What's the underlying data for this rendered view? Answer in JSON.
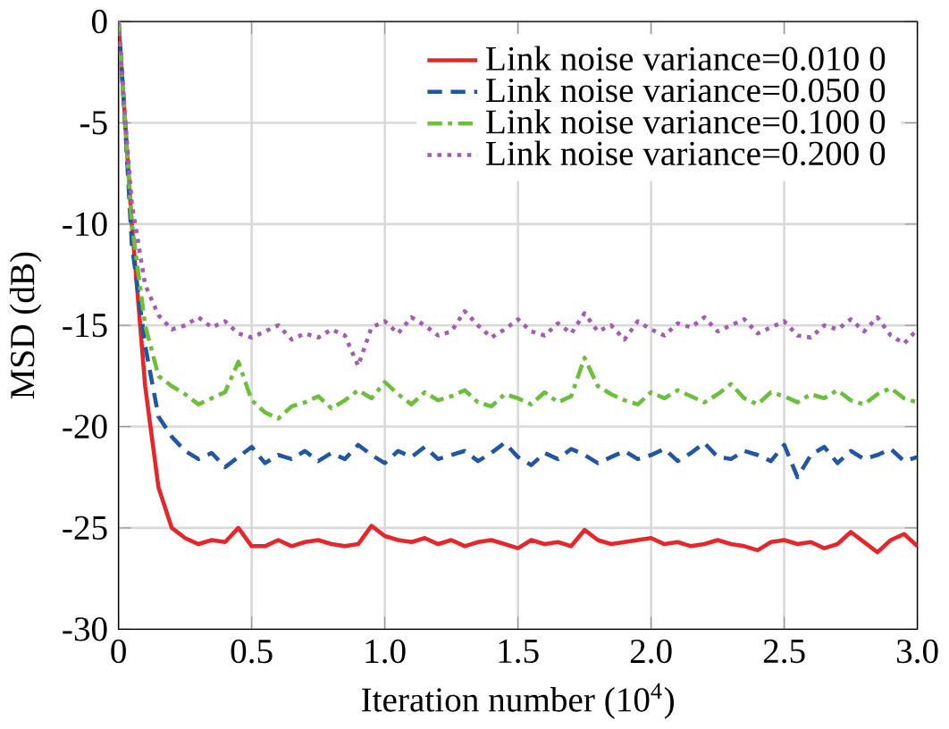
{
  "chart_data": {
    "type": "line",
    "xlabel": "Iteration number (10$^{4}$)",
    "ylabel": "MSD (dB)",
    "xlim": [
      0,
      3
    ],
    "ylim": [
      -30,
      0
    ],
    "xticks": [
      0,
      0.5,
      {
        "value": 1,
        "label": "1.0"
      },
      1.5,
      {
        "value": 2,
        "label": "2.0"
      },
      2.5,
      {
        "value": 3,
        "label": "3.0"
      }
    ],
    "yticks": [
      -30,
      -25,
      -20,
      -15,
      -10,
      -5,
      0
    ],
    "grid": true,
    "legend": "top right",
    "marker": "none",
    "x": [
      0,
      0.02,
      0.05,
      0.1,
      0.15,
      0.2,
      0.25,
      0.3,
      0.35,
      0.4,
      0.45,
      0.5,
      0.55,
      0.6,
      0.65,
      0.7,
      0.75,
      0.8,
      0.85,
      0.9,
      0.95,
      1.0,
      1.05,
      1.1,
      1.15,
      1.2,
      1.25,
      1.3,
      1.35,
      1.4,
      1.45,
      1.5,
      1.55,
      1.6,
      1.65,
      1.7,
      1.75,
      1.8,
      1.85,
      1.9,
      1.95,
      2.0,
      2.05,
      2.1,
      2.15,
      2.2,
      2.25,
      2.3,
      2.35,
      2.4,
      2.45,
      2.5,
      2.55,
      2.6,
      2.65,
      2.7,
      2.75,
      2.8,
      2.85,
      2.9,
      2.95,
      3.0
    ],
    "series": [
      {
        "name": "Link noise variance=0.010 0",
        "color": "#e8262a",
        "line_style": "solid",
        "values": [
          0,
          -4,
          -10,
          -18,
          -23,
          -25,
          -25.5,
          -25.8,
          -25.6,
          -25.7,
          -25.0,
          -25.9,
          -25.9,
          -25.6,
          -25.9,
          -25.7,
          -25.6,
          -25.8,
          -25.9,
          -25.8,
          -24.9,
          -25.4,
          -25.6,
          -25.7,
          -25.5,
          -25.8,
          -25.6,
          -25.9,
          -25.7,
          -25.6,
          -25.8,
          -26.0,
          -25.6,
          -25.8,
          -25.7,
          -25.9,
          -25.1,
          -25.6,
          -25.8,
          -25.7,
          -25.6,
          -25.5,
          -25.8,
          -25.7,
          -25.9,
          -25.8,
          -25.6,
          -25.8,
          -25.9,
          -26.1,
          -25.7,
          -25.6,
          -25.8,
          -25.7,
          -26.0,
          -25.8,
          -25.2,
          -25.7,
          -26.2,
          -25.6,
          -25.3,
          -25.9
        ]
      },
      {
        "name": "Link noise variance=0.050 0",
        "color": "#2156a5",
        "line_style": "dashed",
        "values": [
          0,
          -4,
          -11,
          -16,
          -19.5,
          -20.5,
          -21.2,
          -21.6,
          -21.3,
          -22.0,
          -21.5,
          -21.0,
          -21.8,
          -21.4,
          -21.6,
          -21.2,
          -21.7,
          -21.3,
          -21.6,
          -20.9,
          -21.4,
          -21.8,
          -21.2,
          -21.5,
          -21.0,
          -21.6,
          -21.4,
          -21.2,
          -21.7,
          -21.3,
          -20.8,
          -21.5,
          -21.9,
          -21.3,
          -21.6,
          -21.1,
          -21.4,
          -21.8,
          -21.5,
          -21.2,
          -21.6,
          -21.4,
          -21.1,
          -21.7,
          -21.3,
          -20.8,
          -21.5,
          -21.6,
          -21.2,
          -21.4,
          -21.7,
          -20.9,
          -22.5,
          -21.4,
          -21.0,
          -21.8,
          -21.2,
          -21.6,
          -21.4,
          -21.1,
          -21.7,
          -21.5
        ]
      },
      {
        "name": "Link noise variance=0.100 0",
        "color": "#6bbf3a",
        "line_style": "dashdot",
        "values": [
          0,
          -4,
          -10,
          -15,
          -17.5,
          -18,
          -18.4,
          -18.9,
          -18.6,
          -18.3,
          -16.8,
          -18.7,
          -19.3,
          -19.6,
          -19.0,
          -18.8,
          -18.5,
          -19.1,
          -18.7,
          -18.2,
          -18.6,
          -17.8,
          -18.4,
          -18.9,
          -18.3,
          -18.7,
          -18.5,
          -18.2,
          -18.8,
          -19.0,
          -18.4,
          -18.6,
          -18.9,
          -18.3,
          -18.8,
          -18.5,
          -16.6,
          -18.0,
          -18.4,
          -18.7,
          -18.9,
          -18.3,
          -18.6,
          -18.2,
          -18.5,
          -18.8,
          -18.4,
          -17.9,
          -18.6,
          -18.9,
          -18.3,
          -18.5,
          -18.8,
          -18.4,
          -18.6,
          -18.2,
          -18.7,
          -18.9,
          -18.4,
          -18.1,
          -18.6,
          -18.8
        ]
      },
      {
        "name": "Link noise variance=0.200 0",
        "color": "#a45bb5",
        "line_style": "dotted",
        "values": [
          0,
          -4,
          -9,
          -13,
          -14.5,
          -15.2,
          -15.0,
          -14.6,
          -15.1,
          -14.8,
          -15.4,
          -15.6,
          -15.3,
          -15.0,
          -15.7,
          -15.4,
          -15.6,
          -15.2,
          -15.5,
          -17.0,
          -15.1,
          -14.8,
          -15.4,
          -14.6,
          -15.0,
          -15.5,
          -15.3,
          -14.3,
          -15.0,
          -15.6,
          -15.2,
          -14.7,
          -15.3,
          -15.5,
          -14.9,
          -15.4,
          -14.4,
          -15.3,
          -15.0,
          -15.7,
          -14.8,
          -15.2,
          -15.5,
          -14.9,
          -15.1,
          -14.6,
          -15.3,
          -15.0,
          -14.7,
          -15.4,
          -15.1,
          -14.8,
          -15.5,
          -15.6,
          -15.0,
          -15.2,
          -14.7,
          -15.3,
          -14.6,
          -15.5,
          -15.9,
          -15.2
        ]
      }
    ]
  }
}
